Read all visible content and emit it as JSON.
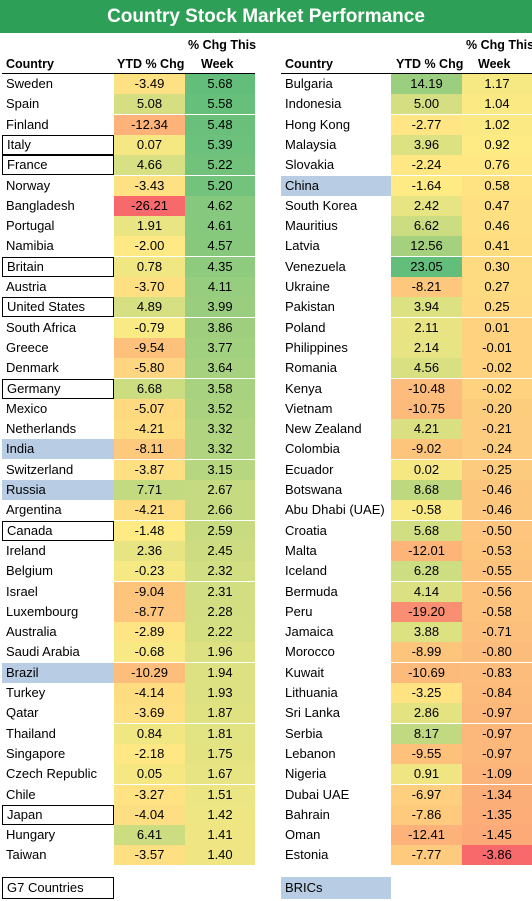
{
  "title": "Country Stock Market Performance",
  "headers": {
    "country": "Country",
    "ytd": "YTD % Chg",
    "week_line1": "% Chg This",
    "week_line2": "Week"
  },
  "legend": {
    "g7": "G7 Countries",
    "bric": "BRICs"
  },
  "colors": {
    "title_bg": "#2e9f57",
    "bric_fill": "#b8cce4",
    "scale_low": "#f8696b",
    "scale_mid": "#ffeb84",
    "scale_high": "#63be7b"
  },
  "chart_data": {
    "type": "table",
    "columns": [
      "Country",
      "YTD % Chg",
      "% Chg This Week"
    ],
    "left": [
      {
        "country": "Sweden",
        "ytd": -3.49,
        "week": 5.68,
        "group": ""
      },
      {
        "country": "Spain",
        "ytd": 5.08,
        "week": 5.58,
        "group": ""
      },
      {
        "country": "Finland",
        "ytd": -12.34,
        "week": 5.48,
        "group": ""
      },
      {
        "country": "Italy",
        "ytd": 0.07,
        "week": 5.39,
        "group": "g7"
      },
      {
        "country": "France",
        "ytd": 4.66,
        "week": 5.22,
        "group": "g7"
      },
      {
        "country": "Norway",
        "ytd": -3.43,
        "week": 5.2,
        "group": ""
      },
      {
        "country": "Bangladesh",
        "ytd": -26.21,
        "week": 4.62,
        "group": ""
      },
      {
        "country": "Portugal",
        "ytd": 1.91,
        "week": 4.61,
        "group": ""
      },
      {
        "country": "Namibia",
        "ytd": -2.0,
        "week": 4.57,
        "group": ""
      },
      {
        "country": "Britain",
        "ytd": 0.78,
        "week": 4.35,
        "group": "g7"
      },
      {
        "country": "Austria",
        "ytd": -3.7,
        "week": 4.11,
        "group": ""
      },
      {
        "country": "United States",
        "ytd": 4.89,
        "week": 3.99,
        "group": "g7"
      },
      {
        "country": "South Africa",
        "ytd": -0.79,
        "week": 3.86,
        "group": ""
      },
      {
        "country": "Greece",
        "ytd": -9.54,
        "week": 3.77,
        "group": ""
      },
      {
        "country": "Denmark",
        "ytd": -5.8,
        "week": 3.64,
        "group": ""
      },
      {
        "country": "Germany",
        "ytd": 6.68,
        "week": 3.58,
        "group": "g7"
      },
      {
        "country": "Mexico",
        "ytd": -5.07,
        "week": 3.52,
        "group": ""
      },
      {
        "country": "Netherlands",
        "ytd": -4.21,
        "week": 3.32,
        "group": ""
      },
      {
        "country": "India",
        "ytd": -8.11,
        "week": 3.32,
        "group": "bric"
      },
      {
        "country": "Switzerland",
        "ytd": -3.87,
        "week": 3.15,
        "group": ""
      },
      {
        "country": "Russia",
        "ytd": 7.71,
        "week": 2.67,
        "group": "bric"
      },
      {
        "country": "Argentina",
        "ytd": -4.21,
        "week": 2.66,
        "group": ""
      },
      {
        "country": "Canada",
        "ytd": -1.48,
        "week": 2.59,
        "group": "g7"
      },
      {
        "country": "Ireland",
        "ytd": 2.36,
        "week": 2.45,
        "group": ""
      },
      {
        "country": "Belgium",
        "ytd": -0.23,
        "week": 2.32,
        "group": ""
      },
      {
        "country": "Israel",
        "ytd": -9.04,
        "week": 2.31,
        "group": ""
      },
      {
        "country": "Luxembourg",
        "ytd": -8.77,
        "week": 2.28,
        "group": ""
      },
      {
        "country": "Australia",
        "ytd": -2.89,
        "week": 2.22,
        "group": ""
      },
      {
        "country": "Saudi Arabia",
        "ytd": -0.68,
        "week": 1.96,
        "group": ""
      },
      {
        "country": "Brazil",
        "ytd": -10.29,
        "week": 1.94,
        "group": "bric"
      },
      {
        "country": "Turkey",
        "ytd": -4.14,
        "week": 1.93,
        "group": ""
      },
      {
        "country": "Qatar",
        "ytd": -3.69,
        "week": 1.87,
        "group": ""
      },
      {
        "country": "Thailand",
        "ytd": 0.84,
        "week": 1.81,
        "group": ""
      },
      {
        "country": "Singapore",
        "ytd": -2.18,
        "week": 1.75,
        "group": ""
      },
      {
        "country": "Czech Republic",
        "ytd": 0.05,
        "week": 1.67,
        "group": ""
      },
      {
        "country": "Chile",
        "ytd": -3.27,
        "week": 1.51,
        "group": ""
      },
      {
        "country": "Japan",
        "ytd": -4.04,
        "week": 1.42,
        "group": "g7"
      },
      {
        "country": "Hungary",
        "ytd": 6.41,
        "week": 1.41,
        "group": ""
      },
      {
        "country": "Taiwan",
        "ytd": -3.57,
        "week": 1.4,
        "group": ""
      }
    ],
    "right": [
      {
        "country": "Bulgaria",
        "ytd": 14.19,
        "week": 1.17,
        "group": ""
      },
      {
        "country": "Indonesia",
        "ytd": 5.0,
        "week": 1.04,
        "group": ""
      },
      {
        "country": "Hong Kong",
        "ytd": -2.77,
        "week": 1.02,
        "group": ""
      },
      {
        "country": "Malaysia",
        "ytd": 3.96,
        "week": 0.92,
        "group": ""
      },
      {
        "country": "Slovakia",
        "ytd": -2.24,
        "week": 0.76,
        "group": ""
      },
      {
        "country": "China",
        "ytd": -1.64,
        "week": 0.58,
        "group": "bric"
      },
      {
        "country": "South Korea",
        "ytd": 2.42,
        "week": 0.47,
        "group": ""
      },
      {
        "country": "Mauritius",
        "ytd": 6.62,
        "week": 0.46,
        "group": ""
      },
      {
        "country": "Latvia",
        "ytd": 12.56,
        "week": 0.41,
        "group": ""
      },
      {
        "country": "Venezuela",
        "ytd": 23.05,
        "week": 0.3,
        "group": ""
      },
      {
        "country": "Ukraine",
        "ytd": -8.21,
        "week": 0.27,
        "group": ""
      },
      {
        "country": "Pakistan",
        "ytd": 3.94,
        "week": 0.25,
        "group": ""
      },
      {
        "country": "Poland",
        "ytd": 2.11,
        "week": 0.01,
        "group": ""
      },
      {
        "country": "Philippines",
        "ytd": 2.14,
        "week": -0.01,
        "group": ""
      },
      {
        "country": "Romania",
        "ytd": 4.56,
        "week": -0.02,
        "group": ""
      },
      {
        "country": "Kenya",
        "ytd": -10.48,
        "week": -0.02,
        "group": ""
      },
      {
        "country": "Vietnam",
        "ytd": -10.75,
        "week": -0.2,
        "group": ""
      },
      {
        "country": "New Zealand",
        "ytd": 4.21,
        "week": -0.21,
        "group": ""
      },
      {
        "country": "Colombia",
        "ytd": -9.02,
        "week": -0.24,
        "group": ""
      },
      {
        "country": "Ecuador",
        "ytd": 0.02,
        "week": -0.25,
        "group": ""
      },
      {
        "country": "Botswana",
        "ytd": 8.68,
        "week": -0.46,
        "group": ""
      },
      {
        "country": "Abu Dhabi (UAE)",
        "ytd": -0.58,
        "week": -0.46,
        "group": ""
      },
      {
        "country": "Croatia",
        "ytd": 5.68,
        "week": -0.5,
        "group": ""
      },
      {
        "country": "Malta",
        "ytd": -12.01,
        "week": -0.53,
        "group": ""
      },
      {
        "country": "Iceland",
        "ytd": 6.28,
        "week": -0.55,
        "group": ""
      },
      {
        "country": "Bermuda",
        "ytd": 4.14,
        "week": -0.56,
        "group": ""
      },
      {
        "country": "Peru",
        "ytd": -19.2,
        "week": -0.58,
        "group": ""
      },
      {
        "country": "Jamaica",
        "ytd": 3.88,
        "week": -0.71,
        "group": ""
      },
      {
        "country": "Morocco",
        "ytd": -8.99,
        "week": -0.8,
        "group": ""
      },
      {
        "country": "Kuwait",
        "ytd": -10.69,
        "week": -0.83,
        "group": ""
      },
      {
        "country": "Lithuania",
        "ytd": -3.25,
        "week": -0.84,
        "group": ""
      },
      {
        "country": "Sri Lanka",
        "ytd": 2.86,
        "week": -0.97,
        "group": ""
      },
      {
        "country": "Serbia",
        "ytd": 8.17,
        "week": -0.97,
        "group": ""
      },
      {
        "country": "Lebanon",
        "ytd": -9.55,
        "week": -0.97,
        "group": ""
      },
      {
        "country": "Nigeria",
        "ytd": 0.91,
        "week": -1.09,
        "group": ""
      },
      {
        "country": "Dubai UAE",
        "ytd": -6.97,
        "week": -1.34,
        "group": ""
      },
      {
        "country": "Bahrain",
        "ytd": -7.86,
        "week": -1.35,
        "group": ""
      },
      {
        "country": "Oman",
        "ytd": -12.41,
        "week": -1.45,
        "group": ""
      },
      {
        "country": "Estonia",
        "ytd": -7.77,
        "week": -3.86,
        "group": ""
      }
    ]
  }
}
